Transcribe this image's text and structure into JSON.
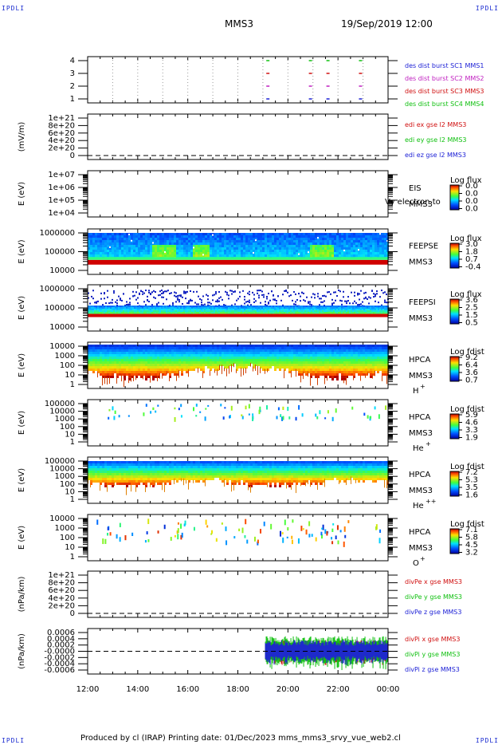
{
  "header": {
    "corner_left": "IPDLI",
    "corner_right": "IPDLI",
    "spacecraft": "MMS3",
    "datetime": "19/Sep/2019 12:00"
  },
  "footer": {
    "text": "Produced by cl (IRAP)   Printing date: 01/Dec/2023   mms_mms3_srvy_vue_web2.cl",
    "corner_left": "IPDLI",
    "corner_right": "IPDLI"
  },
  "colors": {
    "blue": "#1e22d6",
    "magenta": "#c020c0",
    "red": "#d01010",
    "green": "#10c010"
  },
  "chart_data": [
    {
      "type": "scatter",
      "id": "burst",
      "ylabel": "",
      "yticks": [
        "4",
        "3",
        "2",
        "1"
      ],
      "ylim": [
        0.5,
        4.5
      ],
      "xlim": [
        12,
        24
      ],
      "series": [
        {
          "name": "des dist burst SC1 MMS1",
          "color": "#1e22d6",
          "x": [
            19.2,
            20.9,
            21.6,
            22.9
          ],
          "y": [
            1,
            1,
            1,
            1
          ]
        },
        {
          "name": "des dist burst SC2 MMS2",
          "color": "#c020c0",
          "x": [
            19.2,
            20.9,
            21.6,
            22.9
          ],
          "y": [
            2,
            2,
            2,
            2
          ]
        },
        {
          "name": "des dist burst SC3 MMS3",
          "color": "#d01010",
          "x": [
            19.2,
            20.9,
            21.6,
            22.9
          ],
          "y": [
            3,
            3,
            3,
            3
          ]
        },
        {
          "name": "des dist burst SC4 MMS4",
          "color": "#10c010",
          "x": [
            19.2,
            20.9,
            21.6,
            22.9
          ],
          "y": [
            4,
            4,
            4,
            4
          ]
        }
      ]
    },
    {
      "type": "line",
      "id": "edi",
      "ylabel": "(mV/m)",
      "yticks": [
        "1e+21",
        "8e+20",
        "6e+20",
        "4e+20",
        "2e+20",
        "0"
      ],
      "ylim": [
        0,
        1e+21
      ],
      "xlim": [
        12,
        24
      ],
      "series": [
        {
          "name": "edi ex gse l2 MMS3",
          "color": "#d01010",
          "values": []
        },
        {
          "name": "edi ey gse l2 MMS3",
          "color": "#10c010",
          "values": []
        },
        {
          "name": "edi ez gse l2 MMS3",
          "color": "#1e22d6",
          "values": []
        }
      ]
    },
    {
      "type": "heatmap",
      "id": "eis",
      "ylabel": "E (eV)",
      "yticks": [
        "1e+07",
        "1e+06",
        "1e+05",
        "1e+04"
      ],
      "yscale": "log",
      "instrument": "EIS",
      "instrument2": "MMS3",
      "overlay_text": "Vy electron to",
      "cbar_title": "Log flux",
      "cbar_ticks": [
        "0.0",
        "0.0",
        "0.0",
        "0.0"
      ]
    },
    {
      "type": "heatmap",
      "id": "feepse",
      "ylabel": "E (eV)",
      "yticks": [
        "1000000",
        "100000",
        "10000"
      ],
      "yscale": "log",
      "instrument": "FEEPSE",
      "instrument2": "MMS3",
      "cbar_title": "Log flux",
      "cbar_ticks": [
        "3.0",
        "1.8",
        "0.7",
        "-0.4"
      ]
    },
    {
      "type": "heatmap",
      "id": "feepsi",
      "ylabel": "E (eV)",
      "yticks": [
        "1000000",
        "100000",
        "10000"
      ],
      "yscale": "log",
      "instrument": "FEEPSI",
      "instrument2": "MMS3",
      "cbar_title": "Log flux",
      "cbar_ticks": [
        "3.6",
        "2.5",
        "1.5",
        "0.5"
      ]
    },
    {
      "type": "heatmap",
      "id": "hpca_h",
      "ylabel": "E (eV)",
      "yticks": [
        "10000",
        "1000",
        "100",
        "10",
        "1"
      ],
      "yscale": "log",
      "instrument": "HPCA",
      "instrument2": "MMS3",
      "species": "H",
      "charge": "+",
      "cbar_title": "Log fdist",
      "cbar_ticks": [
        "9.2",
        "6.4",
        "3.6",
        "0.7"
      ]
    },
    {
      "type": "heatmap",
      "id": "hpca_he",
      "ylabel": "E (eV)",
      "yticks": [
        "100000",
        "10000",
        "1000",
        "100",
        "10",
        "1"
      ],
      "yscale": "log",
      "instrument": "HPCA",
      "instrument2": "MMS3",
      "species": "He",
      "charge": "+",
      "cbar_title": "Log fdist",
      "cbar_ticks": [
        "5.9",
        "4.6",
        "3.3",
        "1.9"
      ]
    },
    {
      "type": "heatmap",
      "id": "hpca_hepp",
      "ylabel": "E (eV)",
      "yticks": [
        "100000",
        "10000",
        "1000",
        "100",
        "10",
        "1"
      ],
      "yscale": "log",
      "instrument": "HPCA",
      "instrument2": "MMS3",
      "species": "He",
      "charge": "++",
      "cbar_title": "Log fdist",
      "cbar_ticks": [
        "7.2",
        "5.3",
        "3.5",
        "1.6"
      ]
    },
    {
      "type": "heatmap",
      "id": "hpca_o",
      "ylabel": "E (eV)",
      "yticks": [
        "10000",
        "1000",
        "100",
        "10",
        "1"
      ],
      "yscale": "log",
      "instrument": "HPCA",
      "instrument2": "MMS3",
      "species": "O",
      "charge": "+",
      "cbar_title": "Log fdist",
      "cbar_ticks": [
        "7.1",
        "5.8",
        "4.5",
        "3.2"
      ]
    },
    {
      "type": "line",
      "id": "divpe",
      "ylabel": "(nPa/km)",
      "yticks": [
        "1e+21",
        "8e+20",
        "6e+20",
        "4e+20",
        "2e+20",
        "0"
      ],
      "ylim": [
        0,
        1e+21
      ],
      "series": [
        {
          "name": "divPe x gse MMS3",
          "color": "#d01010",
          "values": []
        },
        {
          "name": "divPe y gse MMS3",
          "color": "#10c010",
          "values": []
        },
        {
          "name": "divPe z gse MMS3",
          "color": "#1e22d6",
          "values": []
        }
      ]
    },
    {
      "type": "line",
      "id": "divpi",
      "ylabel": "(nPa/km)",
      "yticks": [
        "0.0006",
        "0.0004",
        "0.0002",
        "-0.0000",
        "-0.0002",
        "-0.0004",
        "-0.0006"
      ],
      "ylim": [
        -0.0006,
        0.0006
      ],
      "data_start_hour": 19.1,
      "series": [
        {
          "name": "divPi x gse MMS3",
          "color": "#d01010",
          "amplitude": 0.0003
        },
        {
          "name": "divPi y gse MMS3",
          "color": "#10c010",
          "amplitude": 0.0004
        },
        {
          "name": "divPi z gse MMS3",
          "color": "#1e22d6",
          "amplitude": 0.0003
        }
      ]
    }
  ],
  "xaxis": {
    "ticks": [
      "12:00",
      "14:00",
      "16:00",
      "18:00",
      "20:00",
      "22:00",
      "00:00"
    ],
    "range_hours": [
      12,
      24
    ]
  }
}
